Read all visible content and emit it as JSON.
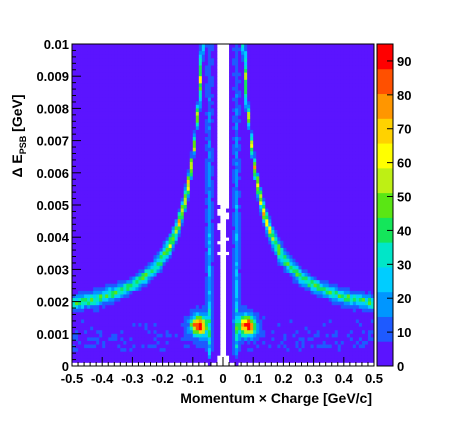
{
  "chart_data": {
    "type": "heatmap",
    "title": "",
    "xlabel": "Momentum × Charge [GeV/c]",
    "ylabel_main": "Δ E",
    "ylabel_sub": "PSB",
    "ylabel_unit": " [GeV]",
    "xlim": [
      -0.5,
      0.5
    ],
    "ylim": [
      0,
      0.01
    ],
    "zlim": [
      0,
      95
    ],
    "x_ticks": [
      -0.5,
      -0.4,
      -0.3,
      -0.2,
      -0.1,
      0,
      0.1,
      0.2,
      0.3,
      0.4,
      0.5
    ],
    "x_tick_labels": [
      "-0.5",
      "-0.4",
      "-0.3",
      "-0.2",
      "-0.1",
      "0",
      "0.1",
      "0.2",
      "0.3",
      "0.4",
      "0.5"
    ],
    "y_ticks": [
      0,
      0.001,
      0.002,
      0.003,
      0.004,
      0.005,
      0.006,
      0.007,
      0.008,
      0.009,
      0.01
    ],
    "y_tick_labels": [
      "0",
      "0.001",
      "0.002",
      "0.003",
      "0.004",
      "0.005",
      "0.006",
      "0.007",
      "0.008",
      "0.009",
      "0.01"
    ],
    "z_ticks": [
      0,
      10,
      20,
      30,
      40,
      50,
      60,
      70,
      80,
      90
    ],
    "z_tick_labels": [
      "0",
      "10",
      "20",
      "30",
      "40",
      "50",
      "60",
      "70",
      "80",
      "90"
    ],
    "palette": [
      "#ffffff",
      "#5b14ff",
      "#1e5aff",
      "#0096ff",
      "#00cdff",
      "#00e6c8",
      "#14e65a",
      "#5ae614",
      "#bef014",
      "#ffff00",
      "#ffd200",
      "#ff9600",
      "#ff5000",
      "#ff0000"
    ],
    "peaks": [
      {
        "x": -0.08,
        "y": 0.0013,
        "max_count": 90
      },
      {
        "x": 0.08,
        "y": 0.0013,
        "max_count": 90
      }
    ],
    "band_description": "dE/dx band per charge sign, rising steeply toward low |momentum|, flattening near 0.0013 GeV at higher |momentum|"
  }
}
